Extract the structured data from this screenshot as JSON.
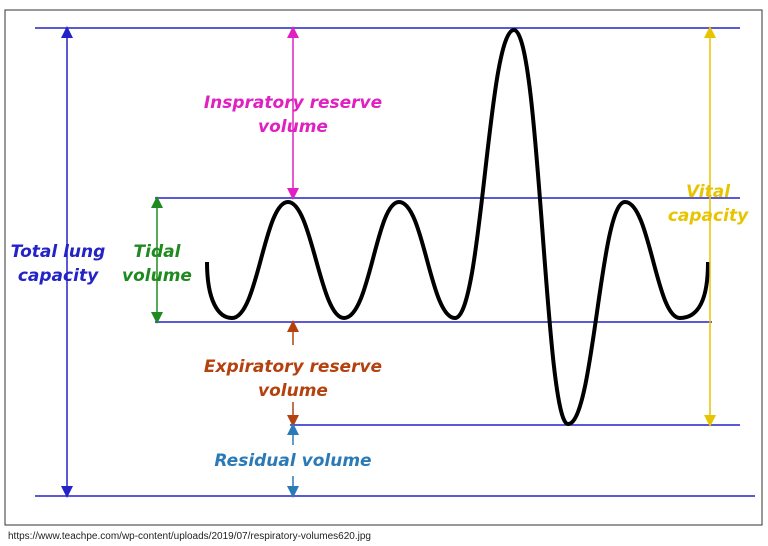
{
  "labels": {
    "inspiratory_reserve": [
      "Inspratory reserve",
      "volume"
    ],
    "tidal": [
      "Tidal",
      "volume"
    ],
    "total_lung": [
      "Total lung",
      "capacity"
    ],
    "expiratory_reserve": [
      "Expiratory reserve",
      "volume"
    ],
    "residual": [
      "Residual volume"
    ],
    "vital": [
      "Vital",
      "capacity"
    ]
  },
  "source": "https://www.teachpe.com/wp-content/uploads/2019/07/respiratory-volumes620.jpg"
}
